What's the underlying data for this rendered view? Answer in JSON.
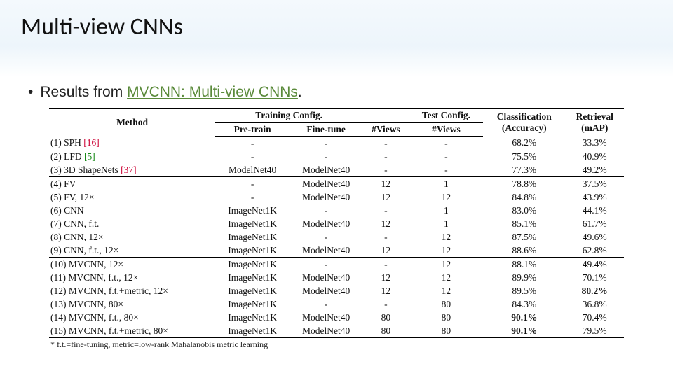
{
  "title": "Multi-view CNNs",
  "bullet_prefix": "Results from ",
  "bullet_link": "MVCNN: Multi-view CNNs",
  "bullet_suffix": ".",
  "headers": {
    "method": "Method",
    "training": "Training Config.",
    "pre": "Pre-train",
    "fine": "Fine-tune",
    "test": "Test Config.",
    "train_views": "#Views",
    "test_views": "#Views",
    "class": "Classification",
    "class_sub": "(Accuracy)",
    "retr": "Retrieval",
    "retr_sub": "(mAP)"
  },
  "groups": [
    [
      {
        "idx": "(1)",
        "name": "SPH",
        "ref": "[16]",
        "refc": "r",
        "pre": "-",
        "fine": "-",
        "tv": "-",
        "sv": "-",
        "acc": "68.2%",
        "map": "33.3%"
      },
      {
        "idx": "(2)",
        "name": "LFD",
        "ref": "[5]",
        "refc": "g",
        "pre": "-",
        "fine": "-",
        "tv": "-",
        "sv": "-",
        "acc": "75.5%",
        "map": "40.9%"
      },
      {
        "idx": "(3)",
        "name": "3D ShapeNets",
        "ref": "[37]",
        "refc": "r",
        "pre": "ModelNet40",
        "fine": "ModelNet40",
        "tv": "-",
        "sv": "-",
        "acc": "77.3%",
        "map": "49.2%"
      }
    ],
    [
      {
        "idx": "(4)",
        "name": "FV",
        "ref": "",
        "refc": "",
        "pre": "-",
        "fine": "ModelNet40",
        "tv": "12",
        "sv": "1",
        "acc": "78.8%",
        "map": "37.5%"
      },
      {
        "idx": "(5)",
        "name": "FV, 12×",
        "ref": "",
        "refc": "",
        "pre": "-",
        "fine": "ModelNet40",
        "tv": "12",
        "sv": "12",
        "acc": "84.8%",
        "map": "43.9%"
      },
      {
        "idx": "(6)",
        "name": "CNN",
        "ref": "",
        "refc": "",
        "pre": "ImageNet1K",
        "fine": "-",
        "tv": "-",
        "sv": "1",
        "acc": "83.0%",
        "map": "44.1%"
      },
      {
        "idx": "(7)",
        "name": "CNN, f.t.",
        "ref": "",
        "refc": "",
        "pre": "ImageNet1K",
        "fine": "ModelNet40",
        "tv": "12",
        "sv": "1",
        "acc": "85.1%",
        "map": "61.7%"
      },
      {
        "idx": "(8)",
        "name": "CNN, 12×",
        "ref": "",
        "refc": "",
        "pre": "ImageNet1K",
        "fine": "-",
        "tv": "-",
        "sv": "12",
        "acc": "87.5%",
        "map": "49.6%"
      },
      {
        "idx": "(9)",
        "name": "CNN, f.t., 12×",
        "ref": "",
        "refc": "",
        "pre": "ImageNet1K",
        "fine": "ModelNet40",
        "tv": "12",
        "sv": "12",
        "acc": "88.6%",
        "map": "62.8%"
      }
    ],
    [
      {
        "idx": "(10)",
        "name": "MVCNN, 12×",
        "ref": "",
        "refc": "",
        "pre": "ImageNet1K",
        "fine": "-",
        "tv": "-",
        "sv": "12",
        "acc": "88.1%",
        "map": "49.4%"
      },
      {
        "idx": "(11)",
        "name": "MVCNN, f.t., 12×",
        "ref": "",
        "refc": "",
        "pre": "ImageNet1K",
        "fine": "ModelNet40",
        "tv": "12",
        "sv": "12",
        "acc": "89.9%",
        "map": "70.1%"
      },
      {
        "idx": "(12)",
        "name": "MVCNN, f.t.+metric, 12×",
        "ref": "",
        "refc": "",
        "pre": "ImageNet1K",
        "fine": "ModelNet40",
        "tv": "12",
        "sv": "12",
        "acc": "89.5%",
        "map": "80.2%",
        "map_bold": true
      },
      {
        "idx": "(13)",
        "name": "MVCNN, 80×",
        "ref": "",
        "refc": "",
        "pre": "ImageNet1K",
        "fine": "-",
        "tv": "-",
        "sv": "80",
        "acc": "84.3%",
        "map": "36.8%"
      },
      {
        "idx": "(14)",
        "name": "MVCNN, f.t., 80×",
        "ref": "",
        "refc": "",
        "pre": "ImageNet1K",
        "fine": "ModelNet40",
        "tv": "80",
        "sv": "80",
        "acc": "90.1%",
        "acc_bold": true,
        "map": "70.4%"
      },
      {
        "idx": "(15)",
        "name": "MVCNN, f.t.+metric, 80×",
        "ref": "",
        "refc": "",
        "pre": "ImageNet1K",
        "fine": "ModelNet40",
        "tv": "80",
        "sv": "80",
        "acc": "90.1%",
        "acc_bold": true,
        "map": "79.5%"
      }
    ]
  ],
  "footnote": "* f.t.=fine-tuning, metric=low-rank Mahalanobis metric learning",
  "style": {
    "link_color": "#5a8a3a",
    "ref_green": "#1a8a1a",
    "ref_red": "#c03",
    "title_fontsize": 34,
    "bullet_fontsize": 21,
    "table_fontsize": 13.5,
    "footnote_fontsize": 12
  }
}
